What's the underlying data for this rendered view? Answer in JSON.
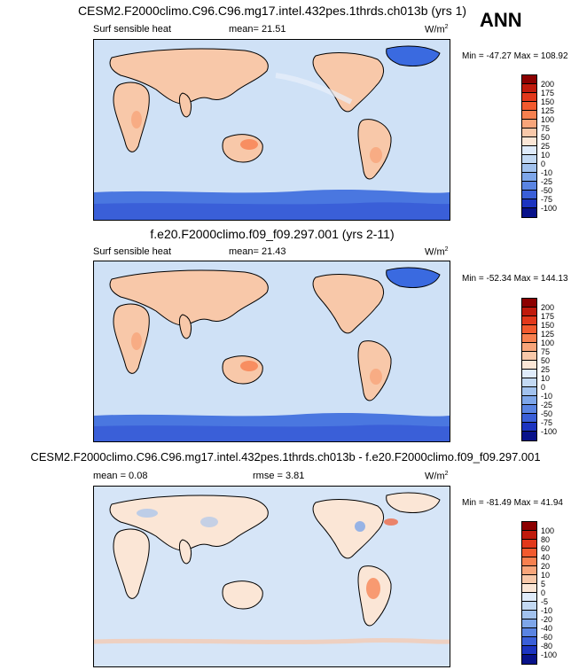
{
  "season": "ANN",
  "panels": [
    {
      "title": "CESM2.F2000climo.C96.C96.mg17.intel.432pes.1thrds.ch013b (yrs 1)",
      "variable": "Surf sensible heat",
      "stat": "mean=  21.51",
      "units": "W/m",
      "units_sup": "2",
      "minmax": "Min = -47.27 Max = 108.92",
      "colorbar_labels": [
        "200",
        "175",
        "150",
        "125",
        "100",
        "75",
        "50",
        "25",
        "10",
        "0",
        "-10",
        "-25",
        "-50",
        "-75",
        "-100"
      ],
      "colorbar_colors": [
        "#8c0000",
        "#c01a0c",
        "#e2381b",
        "#f25a2e",
        "#f7804f",
        "#f8a57a",
        "#f8c8a9",
        "#fbe6d6",
        "#dfebfa",
        "#c3d9f3",
        "#a2c2ee",
        "#7ea6e9",
        "#5a84e2",
        "#3a5fd8",
        "#1c34c0",
        "#08128a"
      ]
    },
    {
      "title": "f.e20.F2000climo.f09_f09.297.001 (yrs 2-11)",
      "variable": "Surf sensible heat",
      "stat": "mean=  21.43",
      "units": "W/m",
      "units_sup": "2",
      "minmax": "Min = -52.34 Max = 144.13",
      "colorbar_labels": [
        "200",
        "175",
        "150",
        "125",
        "100",
        "75",
        "50",
        "25",
        "10",
        "0",
        "-10",
        "-25",
        "-50",
        "-75",
        "-100"
      ],
      "colorbar_colors": [
        "#8c0000",
        "#c01a0c",
        "#e2381b",
        "#f25a2e",
        "#f7804f",
        "#f8a57a",
        "#f8c8a9",
        "#fbe6d6",
        "#dfebfa",
        "#c3d9f3",
        "#a2c2ee",
        "#7ea6e9",
        "#5a84e2",
        "#3a5fd8",
        "#1c34c0",
        "#08128a"
      ]
    },
    {
      "title": "CESM2.F2000climo.C96.C96.mg17.intel.432pes.1thrds.ch013b - f.e20.F2000climo.f09_f09.297.001",
      "stat_left": "mean =  0.08",
      "stat": "rmse =  3.81",
      "units": "W/m",
      "units_sup": "2",
      "minmax": "Min = -81.49 Max = 41.94",
      "colorbar_labels": [
        "100",
        "80",
        "60",
        "40",
        "20",
        "10",
        "5",
        "0",
        "-5",
        "-10",
        "-20",
        "-40",
        "-60",
        "-80",
        "-100"
      ],
      "colorbar_colors": [
        "#8c0000",
        "#c01a0c",
        "#e2381b",
        "#f25a2e",
        "#f7804f",
        "#f8a57a",
        "#f8c8a9",
        "#fbe6d6",
        "#dfebfa",
        "#c3d9f3",
        "#a2c2ee",
        "#7ea6e9",
        "#5a84e2",
        "#3a5fd8",
        "#1c34c0",
        "#08128a"
      ]
    }
  ]
}
